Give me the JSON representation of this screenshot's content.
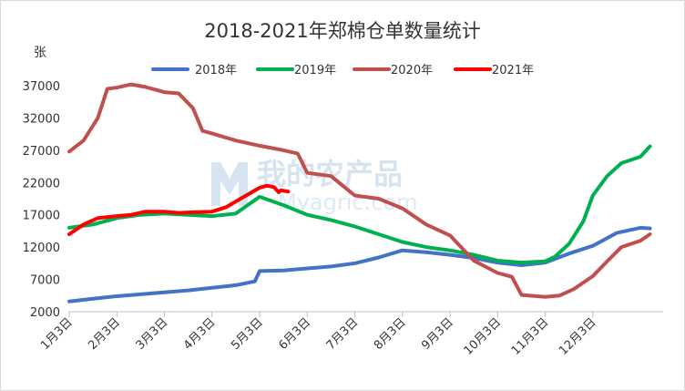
{
  "chart_data": {
    "type": "line",
    "title": "2018-2021年郑棉仓单数量统计",
    "ylabel": "张",
    "xlabel": "",
    "ylim": [
      2000,
      37000
    ],
    "yticks": [
      2000,
      7000,
      12000,
      17000,
      22000,
      27000,
      32000,
      37000
    ],
    "x_domain": [
      1,
      13.4
    ],
    "categories": [
      "1月3日",
      "2月3日",
      "3月3日",
      "4月3日",
      "5月3日",
      "6月3日",
      "7月3日",
      "8月3日",
      "9月3日",
      "10月3日",
      "11月3日",
      "12月3日"
    ],
    "grid": false,
    "legend_position": "top",
    "series": [
      {
        "name": "2018年",
        "color": "#4472c4",
        "x": [
          1.0,
          1.5,
          2.0,
          2.5,
          3.0,
          3.5,
          4.0,
          4.5,
          4.9,
          5.0,
          5.5,
          6.0,
          6.5,
          7.0,
          7.5,
          8.0,
          8.5,
          9.0,
          9.5,
          10.0,
          10.5,
          11.0,
          11.5,
          12.0,
          12.5,
          13.0,
          13.2
        ],
        "y": [
          3600,
          4000,
          4400,
          4700,
          5000,
          5300,
          5700,
          6100,
          6700,
          8300,
          8400,
          8700,
          9000,
          9500,
          10400,
          11500,
          11200,
          10800,
          10300,
          9600,
          9200,
          9600,
          11000,
          12200,
          14200,
          15000,
          14900
        ]
      },
      {
        "name": "2019年",
        "color": "#00b050",
        "x": [
          1.0,
          1.5,
          2.0,
          2.5,
          3.0,
          3.5,
          4.0,
          4.5,
          5.0,
          5.5,
          6.0,
          6.5,
          7.0,
          7.5,
          8.0,
          8.5,
          9.0,
          9.5,
          10.0,
          10.5,
          11.0,
          11.2,
          11.5,
          11.8,
          12.0,
          12.3,
          12.6,
          12.8,
          13.0,
          13.2
        ],
        "y": [
          15000,
          15500,
          16500,
          17000,
          17200,
          17000,
          16800,
          17200,
          19800,
          18500,
          17000,
          16200,
          15200,
          14000,
          12800,
          12000,
          11500,
          10800,
          9900,
          9600,
          9800,
          10500,
          12500,
          16000,
          20000,
          23000,
          25000,
          25500,
          26000,
          27600
        ]
      },
      {
        "name": "2020年",
        "color": "#c0504d",
        "x": [
          1.0,
          1.3,
          1.6,
          1.8,
          2.0,
          2.3,
          2.6,
          3.0,
          3.3,
          3.6,
          3.8,
          4.0,
          4.5,
          5.0,
          5.5,
          5.8,
          6.0,
          6.5,
          7.0,
          7.5,
          8.0,
          8.5,
          9.0,
          9.5,
          10.0,
          10.3,
          10.5,
          11.0,
          11.3,
          11.6,
          12.0,
          12.3,
          12.6,
          13.0,
          13.2
        ],
        "y": [
          26800,
          28500,
          32000,
          36500,
          36700,
          37200,
          36800,
          36000,
          35800,
          33500,
          30000,
          29600,
          28500,
          27700,
          27000,
          26500,
          23500,
          23000,
          20000,
          19500,
          18000,
          15500,
          13800,
          9900,
          8000,
          7400,
          4600,
          4300,
          4500,
          5500,
          7500,
          9800,
          12000,
          13000,
          14000
        ]
      },
      {
        "name": "2021年",
        "color": "#ff0000",
        "x": [
          1.0,
          1.3,
          1.6,
          2.0,
          2.3,
          2.6,
          3.0,
          3.3,
          3.6,
          4.0,
          4.3,
          4.6,
          5.0,
          5.15,
          5.3,
          5.4,
          5.45,
          5.6
        ],
        "y": [
          14000,
          15500,
          16500,
          16800,
          17000,
          17500,
          17500,
          17300,
          17400,
          17500,
          18200,
          19500,
          21200,
          21500,
          21300,
          20500,
          20800,
          20600
        ]
      }
    ]
  },
  "watermark": {
    "logo_text": "我的农产品",
    "sub_text": "Myagric.com"
  }
}
